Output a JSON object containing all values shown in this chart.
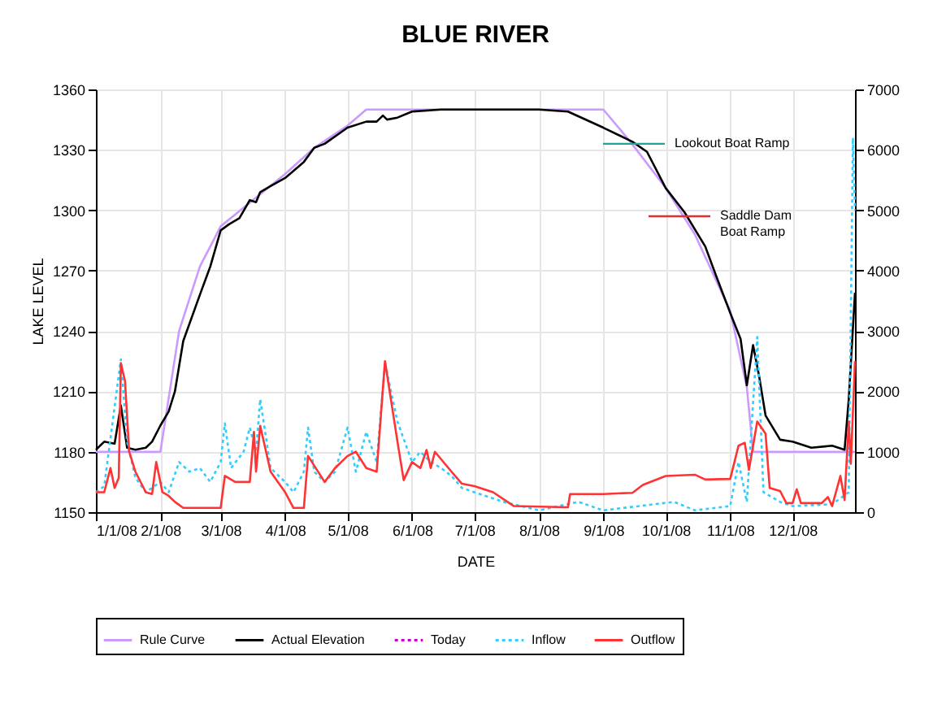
{
  "chart_data": {
    "type": "line",
    "title": "BLUE RIVER",
    "xlabel": "DATE",
    "ylabel": "LAKE LEVEL",
    "xlim": [
      "2008-01-01",
      "2008-12-31"
    ],
    "xticks": [
      {
        "value": "2008-01-01",
        "label": "1/1/08"
      },
      {
        "value": "2008-02-01",
        "label": "2/1/08"
      },
      {
        "value": "2008-03-01",
        "label": "3/1/08"
      },
      {
        "value": "2008-04-01",
        "label": "4/1/08"
      },
      {
        "value": "2008-05-01",
        "label": "5/1/08"
      },
      {
        "value": "2008-06-01",
        "label": "6/1/08"
      },
      {
        "value": "2008-07-01",
        "label": "7/1/08"
      },
      {
        "value": "2008-08-01",
        "label": "8/1/08"
      },
      {
        "value": "2008-09-01",
        "label": "9/1/08"
      },
      {
        "value": "2008-10-01",
        "label": "10/1/08"
      },
      {
        "value": "2008-11-01",
        "label": "11/1/08"
      },
      {
        "value": "2008-12-01",
        "label": "12/1/08"
      }
    ],
    "ylim": [
      1150,
      1360
    ],
    "yticks": [
      1150,
      1180,
      1210,
      1240,
      1270,
      1300,
      1330,
      1360
    ],
    "y2lim": [
      0,
      7000
    ],
    "y2ticks": [
      0,
      1000,
      2000,
      3000,
      4000,
      5000,
      6000,
      7000
    ],
    "grid": true,
    "legend": "bottom",
    "marker": "none",
    "series": [
      {
        "name": "Rule Curve",
        "color": "#cc99ff",
        "line_style": "solid",
        "axis": "y",
        "x": [
          "2008-01-01",
          "2008-02-01",
          "2008-02-10",
          "2008-02-20",
          "2008-03-01",
          "2008-04-01",
          "2008-04-15",
          "2008-05-01",
          "2008-05-10",
          "2008-09-01",
          "2008-09-14",
          "2008-10-01",
          "2008-10-15",
          "2008-11-01",
          "2008-11-09",
          "2008-11-12",
          "2008-12-31"
        ],
        "values": [
          1180,
          1180,
          1240,
          1272,
          1292,
          1318,
          1331,
          1342,
          1350,
          1350,
          1334,
          1311,
          1288,
          1250,
          1212,
          1180,
          1180
        ]
      },
      {
        "name": "Actual Elevation",
        "color": "#000000",
        "line_style": "solid",
        "axis": "y",
        "x": [
          "2008-01-01",
          "2008-01-05",
          "2008-01-10",
          "2008-01-13",
          "2008-01-16",
          "2008-01-20",
          "2008-01-25",
          "2008-01-28",
          "2008-02-01",
          "2008-02-05",
          "2008-02-08",
          "2008-02-12",
          "2008-02-20",
          "2008-02-25",
          "2008-03-01",
          "2008-03-05",
          "2008-03-10",
          "2008-03-15",
          "2008-03-18",
          "2008-03-20",
          "2008-03-25",
          "2008-04-01",
          "2008-04-10",
          "2008-04-15",
          "2008-04-20",
          "2008-05-01",
          "2008-05-10",
          "2008-05-15",
          "2008-05-18",
          "2008-05-20",
          "2008-05-25",
          "2008-06-01",
          "2008-06-15",
          "2008-07-01",
          "2008-08-01",
          "2008-08-15",
          "2008-09-01",
          "2008-09-15",
          "2008-09-22",
          "2008-10-01",
          "2008-10-10",
          "2008-10-20",
          "2008-10-25",
          "2008-11-01",
          "2008-11-06",
          "2008-11-09",
          "2008-11-12",
          "2008-11-15",
          "2008-11-18",
          "2008-11-25",
          "2008-12-01",
          "2008-12-10",
          "2008-12-20",
          "2008-12-26",
          "2008-12-28",
          "2008-12-31"
        ],
        "values": [
          1181,
          1185,
          1184,
          1203,
          1182,
          1181,
          1182,
          1185,
          1193,
          1200,
          1210,
          1235,
          1258,
          1272,
          1290,
          1293,
          1296,
          1305,
          1304,
          1309,
          1312,
          1316,
          1324,
          1331,
          1333,
          1341,
          1344,
          1344,
          1347,
          1345,
          1346,
          1349,
          1350,
          1350,
          1350,
          1349,
          1341,
          1334,
          1329,
          1311,
          1299,
          1282,
          1268,
          1249,
          1236,
          1213,
          1233,
          1217,
          1198,
          1186,
          1185,
          1182,
          1183,
          1181,
          1206,
          1259
        ]
      },
      {
        "name": "Today",
        "color": "#cc00cc",
        "line_style": "dotted",
        "axis": "y"
      },
      {
        "name": "Inflow",
        "color": "#33ccff",
        "line_style": "dotted",
        "axis": "y2",
        "x": [
          "2008-01-01",
          "2008-01-05",
          "2008-01-13",
          "2008-01-16",
          "2008-01-20",
          "2008-01-25",
          "2008-02-01",
          "2008-02-05",
          "2008-02-10",
          "2008-02-15",
          "2008-02-20",
          "2008-02-25",
          "2008-03-01",
          "2008-03-03",
          "2008-03-06",
          "2008-03-12",
          "2008-03-15",
          "2008-03-18",
          "2008-03-20",
          "2008-03-25",
          "2008-04-01",
          "2008-04-05",
          "2008-04-10",
          "2008-04-12",
          "2008-04-15",
          "2008-04-20",
          "2008-04-25",
          "2008-05-01",
          "2008-05-05",
          "2008-05-10",
          "2008-05-15",
          "2008-05-19",
          "2008-05-25",
          "2008-06-01",
          "2008-06-05",
          "2008-06-10",
          "2008-06-15",
          "2008-06-20",
          "2008-06-25",
          "2008-07-01",
          "2008-07-15",
          "2008-08-01",
          "2008-08-20",
          "2008-09-01",
          "2008-10-05",
          "2008-10-15",
          "2008-11-01",
          "2008-11-05",
          "2008-11-09",
          "2008-11-14",
          "2008-11-17",
          "2008-11-25",
          "2008-12-01",
          "2008-12-20",
          "2008-12-28",
          "2008-12-30",
          "2008-12-31"
        ],
        "values": [
          330,
          430,
          2530,
          1170,
          570,
          330,
          500,
          330,
          830,
          670,
          730,
          500,
          830,
          1470,
          730,
          1000,
          1400,
          1000,
          1870,
          730,
          500,
          330,
          670,
          1400,
          670,
          500,
          670,
          1400,
          670,
          1330,
          830,
          2470,
          1500,
          830,
          1000,
          830,
          730,
          600,
          400,
          330,
          170,
          30,
          170,
          30,
          170,
          30,
          100,
          830,
          170,
          2900,
          330,
          170,
          100,
          130,
          330,
          6200,
          5000
        ]
      },
      {
        "name": "Outflow",
        "color": "#ff3333",
        "line_style": "solid",
        "axis": "y2",
        "x": [
          "2008-01-01",
          "2008-01-05",
          "2008-01-08",
          "2008-01-10",
          "2008-01-12",
          "2008-01-13",
          "2008-01-15",
          "2008-01-17",
          "2008-01-20",
          "2008-01-25",
          "2008-01-28",
          "2008-01-30",
          "2008-02-02",
          "2008-02-05",
          "2008-02-08",
          "2008-02-12",
          "2008-03-01",
          "2008-03-03",
          "2008-03-08",
          "2008-03-15",
          "2008-03-17",
          "2008-03-18",
          "2008-03-20",
          "2008-03-25",
          "2008-04-01",
          "2008-04-05",
          "2008-04-10",
          "2008-04-12",
          "2008-04-20",
          "2008-04-25",
          "2008-05-01",
          "2008-05-05",
          "2008-05-10",
          "2008-05-15",
          "2008-05-19",
          "2008-05-25",
          "2008-05-28",
          "2008-06-01",
          "2008-06-05",
          "2008-06-08",
          "2008-06-10",
          "2008-06-12",
          "2008-06-20",
          "2008-06-25",
          "2008-07-01",
          "2008-07-10",
          "2008-07-20",
          "2008-08-15",
          "2008-08-16",
          "2008-09-01",
          "2008-09-15",
          "2008-09-20",
          "2008-10-01",
          "2008-10-15",
          "2008-10-20",
          "2008-11-01",
          "2008-11-05",
          "2008-11-08",
          "2008-11-10",
          "2008-11-14",
          "2008-11-18",
          "2008-11-20",
          "2008-11-25",
          "2008-11-28",
          "2008-12-01",
          "2008-12-03",
          "2008-12-05",
          "2008-12-15",
          "2008-12-18",
          "2008-12-20",
          "2008-12-24",
          "2008-12-26",
          "2008-12-28",
          "2008-12-29",
          "2008-12-31"
        ],
        "values": [
          330,
          330,
          730,
          400,
          570,
          2470,
          2170,
          1000,
          670,
          330,
          300,
          830,
          330,
          270,
          170,
          70,
          70,
          600,
          500,
          500,
          1330,
          670,
          1430,
          670,
          330,
          70,
          70,
          930,
          500,
          730,
          930,
          1000,
          730,
          670,
          2500,
          1170,
          530,
          830,
          730,
          1030,
          730,
          1000,
          670,
          470,
          430,
          330,
          100,
          80,
          300,
          300,
          320,
          450,
          600,
          620,
          540,
          550,
          1100,
          1150,
          700,
          1500,
          1300,
          400,
          350,
          150,
          150,
          380,
          150,
          150,
          250,
          100,
          600,
          200,
          1500,
          800,
          2500
        ]
      }
    ],
    "ref_lines": [
      {
        "axis": "y",
        "value": 1333,
        "label": "Lookout Boat Ramp",
        "color": "#1fa59a"
      },
      {
        "axis": "y",
        "value": 1297,
        "label": "Saddle Dam\nBoat Ramp",
        "color": "#e03030"
      }
    ]
  }
}
